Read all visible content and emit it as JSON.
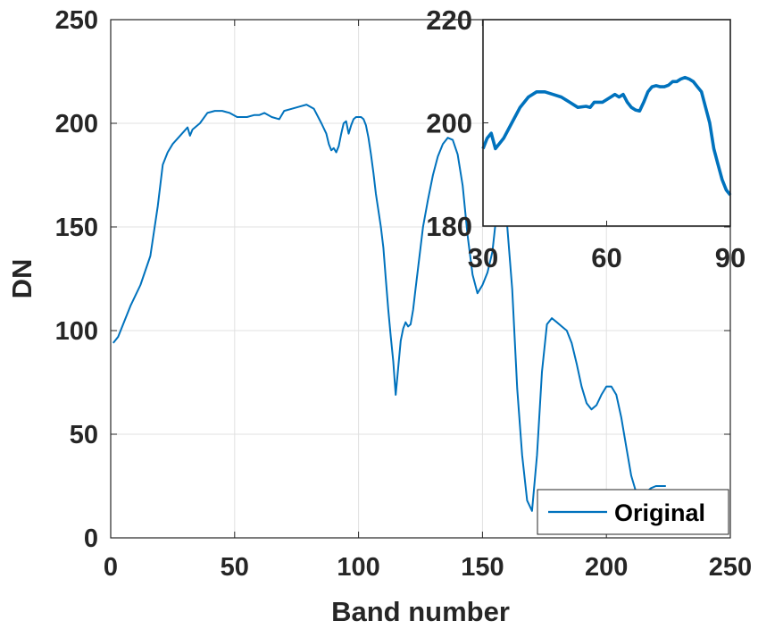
{
  "chart_data": [
    {
      "type": "line",
      "xlabel": "Band number",
      "ylabel": "DN",
      "xlim": [
        0,
        250
      ],
      "ylim": [
        0,
        250
      ],
      "xticks": [
        "0",
        "50",
        "100",
        "150",
        "200",
        "250"
      ],
      "yticks": [
        "0",
        "50",
        "100",
        "150",
        "200",
        "250"
      ],
      "grid": true,
      "legend_placement": "bottom-right",
      "colors": {
        "series": "#0072BD",
        "grid": "#e0e0e0",
        "axis": "#262626"
      },
      "series": [
        {
          "name": "Original",
          "x": [
            1,
            3,
            5,
            8,
            12,
            16,
            19,
            21,
            23,
            25,
            28,
            31,
            32,
            33,
            36,
            39,
            42,
            45,
            48,
            51,
            55,
            58,
            60,
            62,
            65,
            68,
            70,
            73,
            76,
            79,
            82,
            85,
            87,
            88,
            89,
            90,
            91,
            92,
            93,
            94,
            95,
            96,
            97,
            98,
            99,
            100,
            101,
            102,
            103,
            104,
            105,
            106,
            107,
            108,
            109,
            110,
            111,
            112,
            113,
            114,
            115,
            116,
            117,
            118,
            119,
            120,
            121,
            122,
            123,
            124,
            125,
            126,
            128,
            130,
            132,
            134,
            136,
            138,
            140,
            142,
            144,
            146,
            148,
            150,
            152,
            154,
            156,
            158,
            160,
            162,
            164,
            166,
            168,
            170,
            172,
            174,
            176,
            178,
            180,
            182,
            184,
            186,
            188,
            190,
            192,
            194,
            196,
            198,
            200,
            202,
            204,
            206,
            208,
            210,
            212,
            214,
            216,
            218,
            220,
            222,
            224
          ],
          "y": [
            94,
            97,
            103,
            112,
            122,
            136,
            160,
            180,
            186,
            190,
            194,
            198,
            194,
            197,
            200,
            205,
            206,
            206,
            205,
            203,
            203,
            204,
            204,
            205,
            203,
            202,
            206,
            207,
            208,
            209,
            207,
            200,
            195,
            190,
            187,
            188,
            186,
            189,
            195,
            200,
            201,
            195,
            199,
            202,
            203,
            203,
            203,
            202,
            199,
            193,
            185,
            176,
            166,
            158,
            150,
            140,
            125,
            110,
            97,
            85,
            69,
            82,
            95,
            101,
            104,
            102,
            103,
            110,
            120,
            130,
            140,
            150,
            163,
            175,
            184,
            190,
            193,
            192,
            185,
            170,
            146,
            127,
            118,
            122,
            128,
            138,
            160,
            175,
            150,
            120,
            72,
            40,
            18,
            13,
            40,
            80,
            103,
            106,
            104,
            102,
            100,
            94,
            84,
            73,
            65,
            62,
            64,
            69,
            73,
            73,
            69,
            58,
            44,
            30,
            22,
            20,
            22,
            24,
            25,
            25,
            25
          ]
        }
      ]
    },
    {
      "type": "line",
      "xlim": [
        30,
        90
      ],
      "ylim": [
        180,
        220
      ],
      "xticks": [
        "30",
        "60",
        "90"
      ],
      "yticks": [
        "180",
        "200",
        "220"
      ],
      "grid": false,
      "series": [
        {
          "x": [
            30,
            31,
            32,
            33,
            35,
            37,
            39,
            41,
            43,
            45,
            47,
            49,
            51,
            53,
            55,
            56,
            57,
            58,
            59,
            60,
            61,
            62,
            63,
            64,
            65,
            66,
            67,
            68,
            69,
            70,
            71,
            72,
            73,
            74,
            75,
            76,
            77,
            78,
            79,
            80,
            81,
            82,
            83,
            84,
            85,
            86,
            87,
            88,
            89,
            90
          ],
          "y": [
            195,
            197,
            198,
            195,
            197,
            200,
            203,
            205,
            206,
            206,
            205.5,
            205,
            204,
            203,
            203.2,
            203,
            204,
            204,
            204,
            204.5,
            205,
            205.5,
            205,
            205.5,
            204,
            203,
            202.5,
            202.3,
            204,
            206,
            207,
            207.2,
            207,
            207,
            207.3,
            208,
            208,
            208.5,
            208.8,
            208.5,
            208,
            207,
            206,
            203,
            200,
            195,
            192,
            189,
            187,
            186
          ]
        }
      ]
    }
  ],
  "legend": {
    "label": "Original"
  }
}
